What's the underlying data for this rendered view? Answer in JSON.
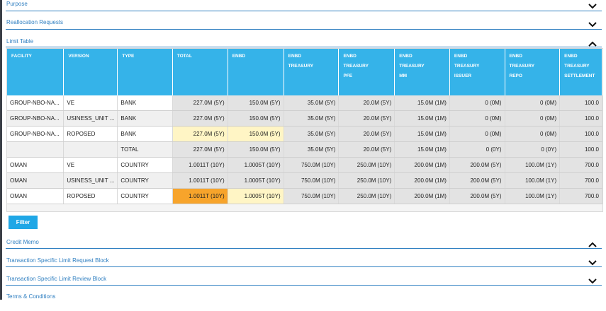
{
  "sections": {
    "purpose": "Purpose",
    "reallocation": "Reallocation Requests",
    "limit_table": "Limit Table",
    "credit_memo": "Credit Memo",
    "txn_request": "Transaction Specific Limit Request Block",
    "txn_review": "Transaction Specific Limit Review Block",
    "terms": "Terms & Conditions"
  },
  "table": {
    "headers": [
      [
        "FACILITY"
      ],
      [
        "VERSION"
      ],
      [
        "TYPE"
      ],
      [
        "TOTAL"
      ],
      [
        "ENBD"
      ],
      [
        "ENBD",
        "TREASURY"
      ],
      [
        "ENBD",
        "TREASURY",
        "PFE"
      ],
      [
        "ENBD",
        "TREASURY",
        "MM"
      ],
      [
        "ENBD",
        "TREASURY",
        "ISSUER"
      ],
      [
        "ENBD",
        "TREASURY",
        "REPO"
      ],
      [
        "ENBD",
        "TREASURY",
        "SETTLEMENT"
      ]
    ],
    "rows": [
      [
        "GROUP-NBO-NA...",
        "VE",
        "BANK",
        "227.0M (5Y)",
        "150.0M (5Y)",
        "35.0M (5Y)",
        "20.0M (5Y)",
        "15.0M (1M)",
        "0 (0M)",
        "0 (0M)",
        "100.0"
      ],
      [
        "GROUP-NBO-NA...",
        "USINESS_UNIT ...",
        "BANK",
        "227.0M (5Y)",
        "150.0M (5Y)",
        "35.0M (5Y)",
        "20.0M (5Y)",
        "15.0M (1M)",
        "0 (0M)",
        "0 (0M)",
        "100.0"
      ],
      [
        "GROUP-NBO-NA...",
        "ROPOSED",
        "BANK",
        "227.0M (5Y)",
        "150.0M (5Y)",
        "35.0M (5Y)",
        "20.0M (5Y)",
        "15.0M (1M)",
        "0 (0M)",
        "0 (0M)",
        "100.0"
      ],
      [
        "",
        "",
        "TOTAL",
        "227.0M (5Y)",
        "150.0M (5Y)",
        "35.0M (5Y)",
        "20.0M (5Y)",
        "15.0M (1M)",
        "0 (0Y)",
        "0 (0Y)",
        "100.0"
      ],
      [
        "OMAN",
        "VE",
        "COUNTRY",
        "1.0011T (10Y)",
        "1.0005T (10Y)",
        "750.0M (10Y)",
        "250.0M (10Y)",
        "200.0M (1M)",
        "200.0M (5Y)",
        "100.0M (1Y)",
        "700.0"
      ],
      [
        "OMAN",
        "USINESS_UNIT ...",
        "COUNTRY",
        "1.0011T (10Y)",
        "1.0005T (10Y)",
        "750.0M (10Y)",
        "250.0M (10Y)",
        "200.0M (1M)",
        "200.0M (5Y)",
        "100.0M (1Y)",
        "700.0"
      ],
      [
        "OMAN",
        "ROPOSED",
        "COUNTRY",
        "1.0011T (10Y)",
        "1.0005T (10Y)",
        "750.0M (10Y)",
        "250.0M (10Y)",
        "200.0M (1M)",
        "200.0M (5Y)",
        "100.0M (1Y)",
        "700.0"
      ]
    ],
    "highlights": {
      "2-3": "yellow",
      "2-4": "yellow",
      "6-3": "orange",
      "6-4": "yellow"
    }
  },
  "filter_label": "Filter",
  "colors": {
    "accent": "#2f7fc1",
    "header_bg": "#35b3e9",
    "button_bg": "#1fa7e6",
    "highlight_yellow": "#fff5c5",
    "highlight_orange": "#f7a42b"
  },
  "icons": {
    "expand": "chevron-down-icon",
    "collapse": "chevron-up-icon"
  }
}
